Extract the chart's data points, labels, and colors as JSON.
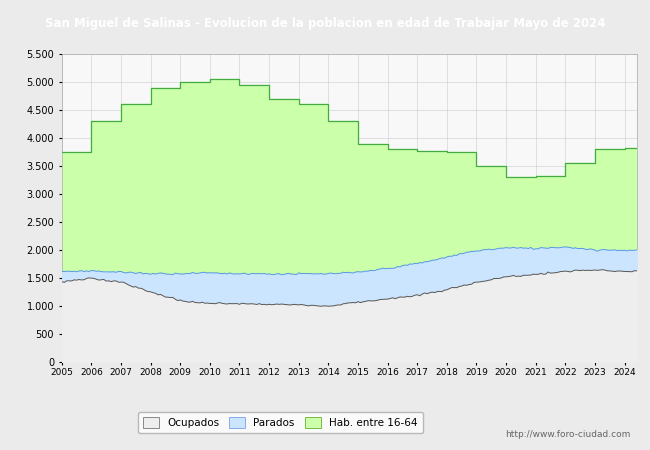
{
  "title": "San Miguel de Salinas - Evolucion de la poblacion en edad de Trabajar Mayo de 2024",
  "title_bg": "#4472c4",
  "title_color": "#ffffff",
  "title_fontsize": 8.5,
  "years": [
    2005,
    2006,
    2007,
    2008,
    2009,
    2010,
    2011,
    2012,
    2013,
    2014,
    2015,
    2016,
    2017,
    2018,
    2019,
    2020,
    2021,
    2022,
    2023,
    2024
  ],
  "hab_16_64": [
    3750,
    4300,
    4600,
    4900,
    5000,
    5050,
    4950,
    4700,
    4600,
    4300,
    3900,
    3800,
    3770,
    3760,
    3500,
    3310,
    3320,
    3560,
    3800,
    3830
  ],
  "parados_top": [
    1620,
    1630,
    1610,
    1590,
    1590,
    1600,
    1590,
    1580,
    1570,
    1570,
    1590,
    1660,
    1760,
    1880,
    1990,
    2040,
    2030,
    2060,
    2010,
    2000
  ],
  "ocupados_top": [
    1430,
    1490,
    1430,
    1240,
    1090,
    1040,
    1030,
    1020,
    1010,
    990,
    1060,
    1120,
    1180,
    1290,
    1420,
    1510,
    1570,
    1620,
    1640,
    1620
  ],
  "color_hab": "#ccffaa",
  "color_parados": "#cce5ff",
  "color_ocupados": "#eeeeee",
  "color_hab_line": "#44aa44",
  "color_parados_line": "#5599dd",
  "color_ocupados_line": "#555555",
  "ylim": [
    0,
    5500
  ],
  "yticks": [
    0,
    500,
    1000,
    1500,
    2000,
    2500,
    3000,
    3500,
    4000,
    4500,
    5000,
    5500
  ],
  "url_text": "http://www.foro-ciudad.com",
  "legend_labels": [
    "Ocupados",
    "Parados",
    "Hab. entre 16-64"
  ],
  "bg_color": "#ebebeb",
  "plot_bg": "#f8f8f8",
  "grid_color": "#cccccc"
}
